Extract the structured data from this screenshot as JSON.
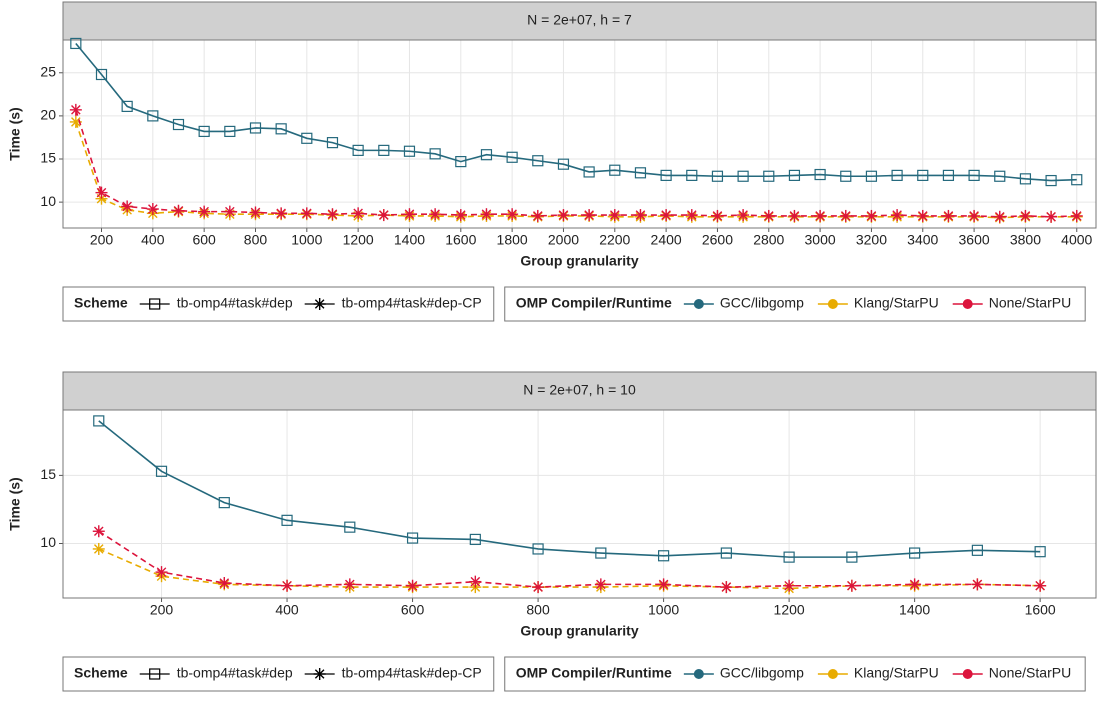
{
  "chart_data": [
    {
      "type": "line",
      "title": "N = 2e+07, h = 7",
      "xlabel": "Group granularity",
      "ylabel": "Time (s)",
      "grid": true,
      "x": [
        100,
        200,
        300,
        400,
        500,
        600,
        700,
        800,
        900,
        1000,
        1100,
        1200,
        1300,
        1400,
        1500,
        1600,
        1700,
        1800,
        1900,
        2000,
        2100,
        2200,
        2300,
        2400,
        2500,
        2600,
        2700,
        2800,
        2900,
        3000,
        3100,
        3200,
        3300,
        3400,
        3500,
        3600,
        3700,
        3800,
        3900,
        4000
      ],
      "xlim": [
        50,
        4075
      ],
      "xticks": [
        200,
        400,
        600,
        800,
        1000,
        1200,
        1400,
        1600,
        1800,
        2000,
        2200,
        2400,
        2600,
        2800,
        3000,
        3200,
        3400,
        3600,
        3800,
        4000
      ],
      "ylim": [
        7,
        28.8
      ],
      "yticks": [
        10,
        15,
        20,
        25
      ],
      "scheme_title": "Scheme",
      "schemes": [
        {
          "name": "tb-omp4#task#dep",
          "marker": "square"
        },
        {
          "name": "tb-omp4#task#dep-CP",
          "marker": "asterisk"
        }
      ],
      "legend_title": "OMP Compiler/Runtime",
      "series": [
        {
          "name": "GCC/libgomp",
          "color": "#25697d",
          "marker": "square",
          "dashed": false,
          "values": [
            28.4,
            24.8,
            21.1,
            20.0,
            19.0,
            18.2,
            18.2,
            18.6,
            18.5,
            17.4,
            16.9,
            16.0,
            16.0,
            15.9,
            15.6,
            14.7,
            15.5,
            15.2,
            14.8,
            14.4,
            13.5,
            13.7,
            13.4,
            13.1,
            13.1,
            13.0,
            13.0,
            13.0,
            13.1,
            13.2,
            13.0,
            13.0,
            13.1,
            13.1,
            13.1,
            13.1,
            13.0,
            12.7,
            12.5,
            12.6
          ]
        },
        {
          "name": "Klang/StarPU",
          "color": "#e8ab00",
          "marker": "asterisk",
          "dashed": true,
          "values": [
            19.3,
            10.4,
            9.1,
            8.7,
            8.9,
            8.7,
            8.6,
            8.6,
            8.6,
            8.6,
            8.5,
            8.4,
            8.5,
            8.4,
            8.4,
            8.3,
            8.4,
            8.4,
            8.3,
            8.4,
            8.4,
            8.3,
            8.3,
            8.4,
            8.3,
            8.3,
            8.3,
            8.3,
            8.3,
            8.3,
            8.3,
            8.3,
            8.3,
            8.3,
            8.3,
            8.3,
            8.2,
            8.3,
            8.3,
            8.3
          ]
        },
        {
          "name": "None/StarPU",
          "color": "#dc143c",
          "marker": "asterisk",
          "dashed": true,
          "values": [
            20.7,
            11.1,
            9.5,
            9.2,
            9.0,
            8.9,
            8.9,
            8.8,
            8.7,
            8.7,
            8.6,
            8.7,
            8.5,
            8.6,
            8.6,
            8.5,
            8.6,
            8.6,
            8.4,
            8.5,
            8.5,
            8.5,
            8.5,
            8.5,
            8.5,
            8.4,
            8.5,
            8.4,
            8.4,
            8.4,
            8.4,
            8.4,
            8.5,
            8.4,
            8.4,
            8.4,
            8.3,
            8.4,
            8.3,
            8.4
          ]
        }
      ]
    },
    {
      "type": "line",
      "title": "N = 2e+07, h = 10",
      "xlabel": "Group granularity",
      "ylabel": "Time (s)",
      "grid": true,
      "x": [
        100,
        200,
        300,
        400,
        500,
        600,
        700,
        800,
        900,
        1000,
        1100,
        1200,
        1300,
        1400,
        1500,
        1600
      ],
      "xlim": [
        43,
        1689
      ],
      "xticks": [
        200,
        400,
        600,
        800,
        1000,
        1200,
        1400,
        1600
      ],
      "ylim": [
        6,
        19.8
      ],
      "yticks": [
        10,
        15
      ],
      "scheme_title": "Scheme",
      "schemes": [
        {
          "name": "tb-omp4#task#dep",
          "marker": "square"
        },
        {
          "name": "tb-omp4#task#dep-CP",
          "marker": "asterisk"
        }
      ],
      "legend_title": "OMP Compiler/Runtime",
      "series": [
        {
          "name": "GCC/libgomp",
          "color": "#25697d",
          "marker": "square",
          "dashed": false,
          "values": [
            19.0,
            15.3,
            13.0,
            11.7,
            11.2,
            10.4,
            10.3,
            9.6,
            9.3,
            9.1,
            9.3,
            9.0,
            9.0,
            9.3,
            9.5,
            9.4
          ]
        },
        {
          "name": "Klang/StarPU",
          "color": "#e8ab00",
          "marker": "asterisk",
          "dashed": true,
          "values": [
            9.6,
            7.6,
            7.0,
            6.9,
            6.8,
            6.8,
            6.8,
            6.8,
            6.8,
            6.9,
            6.8,
            6.7,
            6.9,
            6.9,
            7.0,
            6.9
          ]
        },
        {
          "name": "None/StarPU",
          "color": "#dc143c",
          "marker": "asterisk",
          "dashed": true,
          "values": [
            10.9,
            7.9,
            7.1,
            6.9,
            7.0,
            6.9,
            7.2,
            6.8,
            7.0,
            7.0,
            6.8,
            6.9,
            6.9,
            7.0,
            7.0,
            6.9
          ]
        }
      ]
    }
  ]
}
